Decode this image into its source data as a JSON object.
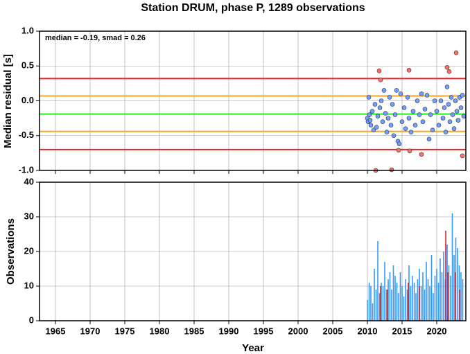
{
  "chart_data": [
    {
      "type": "scatter",
      "title": "Station DRUM, phase P, 1289 observations",
      "annotation": "median = -0.19, smad = 0.26",
      "ylabel": "Median residual [s]",
      "xlim": [
        1962.7,
        2024.2
      ],
      "ylim": [
        -1.0,
        1.0
      ],
      "yticks": [
        {
          "value": -1.0,
          "label": "-1.0"
        },
        -0.5,
        {
          "value": 0.0,
          "label": "0.0"
        },
        0.5,
        {
          "value": 1.0,
          "label": "1.0"
        }
      ],
      "grid": true,
      "reference_lines": [
        {
          "value": 0.32,
          "color": "#ee2222"
        },
        {
          "value": 0.07,
          "color": "#f5a623"
        },
        {
          "value": -0.19,
          "color": "#22ee22"
        },
        {
          "value": -0.44,
          "color": "#f5a623"
        },
        {
          "value": -0.7,
          "color": "#ee2222"
        }
      ],
      "series": [
        {
          "color": "#6f9fff",
          "x": [
            2010.0,
            2010.1,
            2010.2,
            2010.3,
            2010.4,
            2010.5,
            2010.7,
            2010.9,
            2011.1,
            2011.3,
            2011.5,
            2011.8,
            2012.0,
            2012.2,
            2012.4,
            2012.6,
            2012.8,
            2013.0,
            2013.2,
            2013.4,
            2013.6,
            2013.8,
            2014.0,
            2014.2,
            2014.4,
            2014.6,
            2014.8,
            2015.0,
            2015.3,
            2015.5,
            2015.8,
            2016.0,
            2016.3,
            2016.6,
            2016.9,
            2017.2,
            2017.5,
            2017.8,
            2018.0,
            2018.3,
            2018.6,
            2018.9,
            2019.1,
            2019.4,
            2019.7,
            2020.0,
            2020.3,
            2020.6,
            2020.9,
            2021.1,
            2021.3,
            2021.5,
            2021.7,
            2021.9,
            2022.1,
            2022.3,
            2022.5,
            2022.7,
            2022.9,
            2023.1,
            2023.3,
            2023.5,
            2023.7,
            2023.9
          ],
          "values": [
            -0.25,
            -0.3,
            0.05,
            -0.2,
            -0.28,
            -0.35,
            -0.15,
            -0.42,
            -0.05,
            -0.38,
            -0.22,
            -0.1,
            0.0,
            -0.3,
            0.15,
            -0.18,
            -0.45,
            -0.25,
            0.05,
            -0.35,
            -0.05,
            -0.5,
            -0.2,
            0.15,
            -0.58,
            -0.62,
            0.1,
            -0.3,
            -0.1,
            -0.4,
            0.05,
            -0.25,
            -0.45,
            -0.15,
            -0.35,
            0.0,
            -0.2,
            0.1,
            -0.3,
            -0.12,
            0.08,
            -0.55,
            -0.2,
            -0.42,
            0.0,
            -0.15,
            -0.35,
            0.0,
            -0.25,
            -0.1,
            -0.45,
            0.2,
            -0.05,
            -0.3,
            0.05,
            -0.2,
            -0.4,
            0.0,
            -0.15,
            -0.28,
            0.05,
            -0.1,
            0.08,
            -0.22
          ]
        },
        {
          "color": "#ff7060",
          "x": [
            2011.2,
            2011.7,
            2011.9,
            2013.5,
            2014.5,
            2016.0,
            2016.1,
            2017.8,
            2021.5,
            2021.8,
            2022.8,
            2023.7
          ],
          "values": [
            -1.0,
            0.43,
            0.3,
            -0.99,
            -0.71,
            0.44,
            -0.72,
            -0.77,
            0.48,
            0.42,
            0.69,
            -0.79
          ]
        }
      ]
    },
    {
      "type": "bar",
      "xlabel": "Year",
      "ylabel": "Observations",
      "xlim": [
        1962.7,
        2024.2
      ],
      "ylim": [
        0,
        40
      ],
      "xticks": [
        1965,
        1970,
        1975,
        1980,
        1985,
        1990,
        1995,
        2000,
        2005,
        2010,
        2015,
        2020
      ],
      "yticks": [
        0,
        10,
        20,
        30,
        40
      ],
      "grid": true,
      "series": [
        {
          "color": "#3399ff",
          "x": [
            2010.0,
            2010.25,
            2010.5,
            2010.75,
            2011.0,
            2011.25,
            2011.5,
            2011.75,
            2012.0,
            2012.25,
            2012.5,
            2012.75,
            2013.0,
            2013.25,
            2013.5,
            2013.75,
            2014.0,
            2014.25,
            2014.5,
            2014.75,
            2015.0,
            2015.25,
            2015.5,
            2015.75,
            2016.0,
            2016.25,
            2016.5,
            2016.75,
            2017.0,
            2017.25,
            2017.5,
            2017.75,
            2018.0,
            2018.25,
            2018.5,
            2018.75,
            2019.0,
            2019.25,
            2019.5,
            2019.75,
            2020.0,
            2020.25,
            2020.5,
            2020.75,
            2021.0,
            2021.25,
            2021.5,
            2021.75,
            2022.0,
            2022.25,
            2022.5,
            2022.75,
            2023.0,
            2023.25,
            2023.5,
            2023.75
          ],
          "values": [
            6,
            11,
            10,
            5,
            15,
            9,
            23,
            8,
            11,
            10,
            17,
            9,
            12,
            14,
            9,
            16,
            13,
            11,
            8,
            14,
            10,
            7,
            12,
            9,
            16,
            10,
            13,
            11,
            8,
            12,
            15,
            10,
            14,
            9,
            17,
            12,
            10,
            19,
            8,
            13,
            15,
            11,
            18,
            14,
            20,
            12,
            22,
            16,
            13,
            31,
            19,
            24,
            21,
            16,
            14,
            12
          ]
        },
        {
          "color": "#dd2222",
          "x": [
            2011.9,
            2012.9,
            2015.9,
            2017.5,
            2021.3,
            2021.6,
            2022.7,
            2023.3
          ],
          "values": [
            10,
            9,
            11,
            10,
            26,
            14,
            14,
            9
          ]
        }
      ]
    }
  ]
}
